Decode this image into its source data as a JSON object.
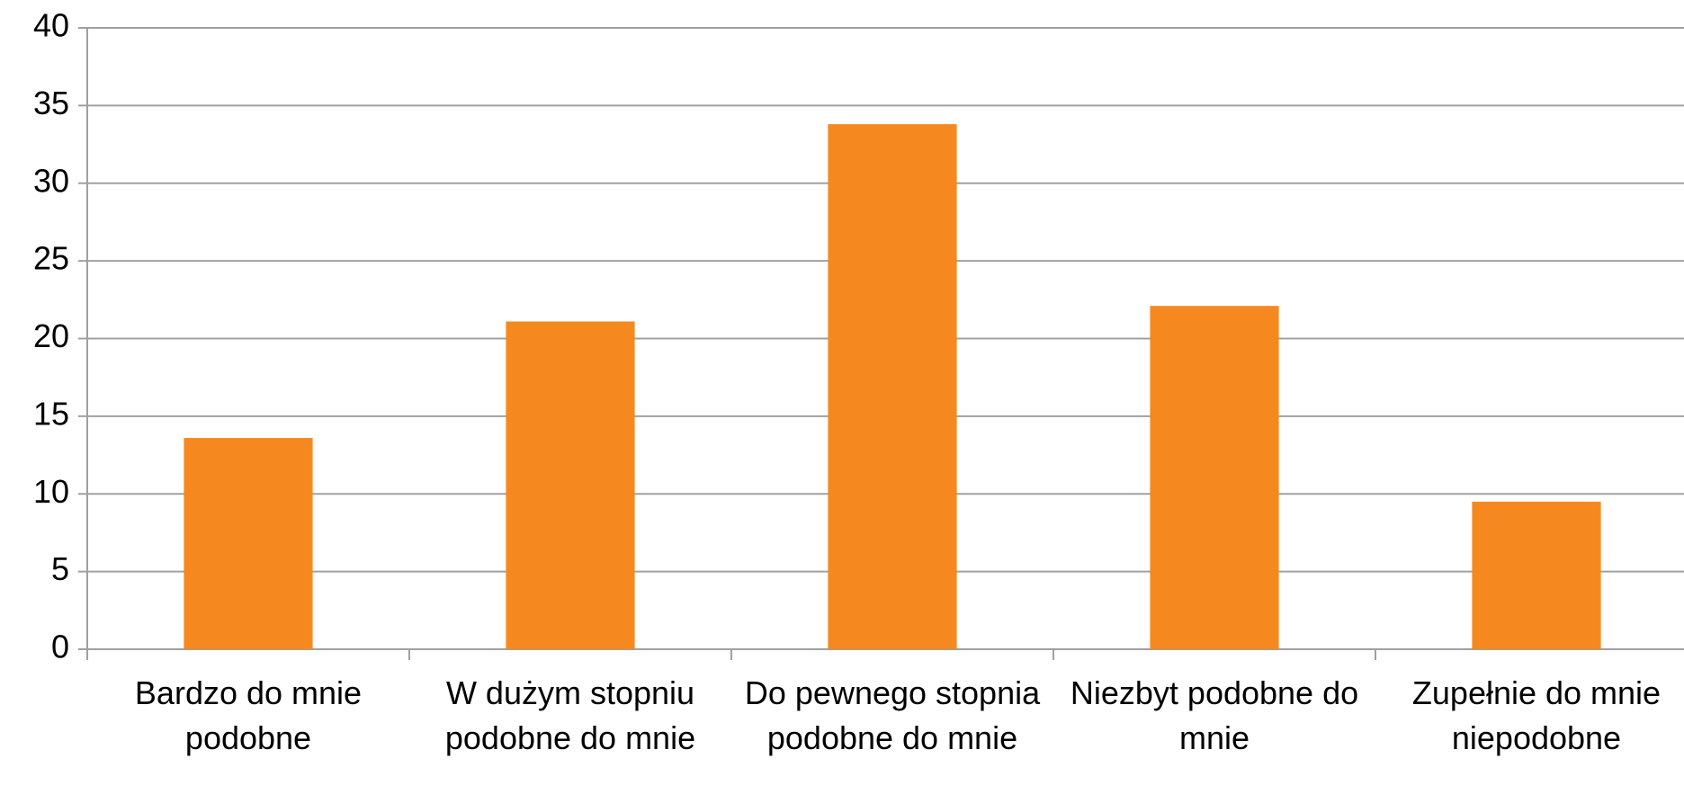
{
  "chart_data": {
    "type": "bar",
    "categories": [
      "Bardzo do mnie podobne",
      "W dużym stopniu podobne do mnie",
      "Do pewnego stopnia podobne do mnie",
      "Niezbyt podobne do mnie",
      "Zupełnie do mnie niepodobne"
    ],
    "values": [
      13.6,
      21.1,
      33.8,
      22.1,
      9.5
    ],
    "color": "#f5891f",
    "ylim": [
      0,
      40
    ],
    "yticks": [
      0,
      5,
      10,
      15,
      20,
      25,
      30,
      35,
      40
    ],
    "grid": true
  }
}
